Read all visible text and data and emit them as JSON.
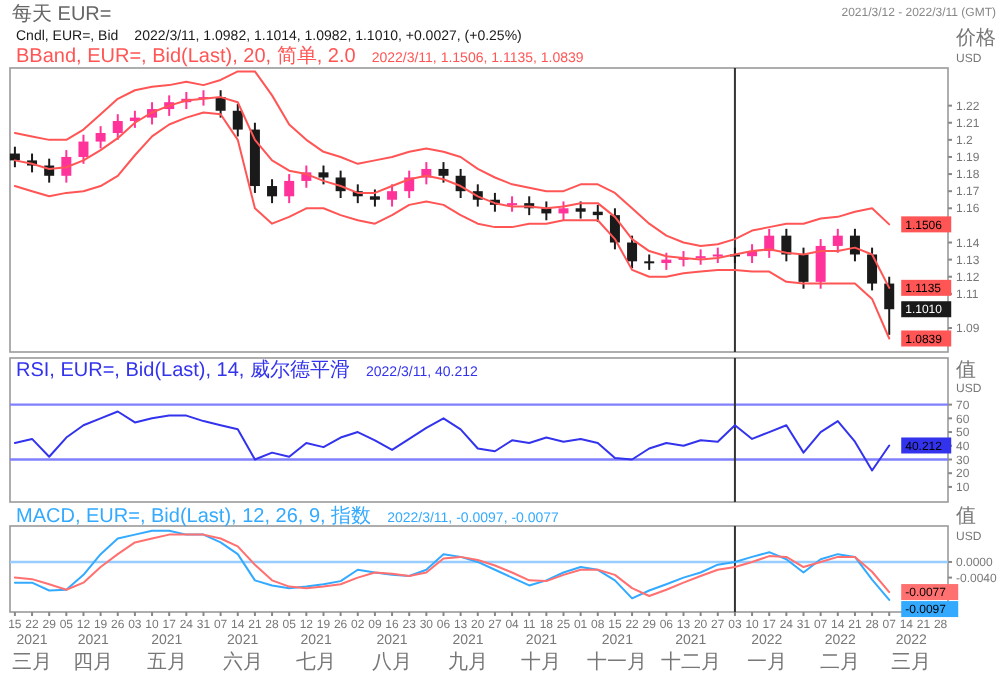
{
  "chart_data": [
    {
      "type": "candlestick",
      "title": "每天 EUR=",
      "subtitle": "2021/3/12 - 2022/3/11 (GMT)",
      "ylabel": "价格 USD",
      "legend": "top left",
      "tick_labels": "y",
      "x": [
        "2021-03-15",
        "2021-03-22",
        "2021-03-29",
        "2021-04-05",
        "2021-04-12",
        "2021-04-19",
        "2021-04-26",
        "2021-05-03",
        "2021-05-10",
        "2021-05-17",
        "2021-05-24",
        "2021-05-31",
        "2021-06-07",
        "2021-06-14",
        "2021-06-21",
        "2021-06-28",
        "2021-07-05",
        "2021-07-12",
        "2021-07-19",
        "2021-07-26",
        "2021-08-02",
        "2021-08-09",
        "2021-08-16",
        "2021-08-23",
        "2021-08-30",
        "2021-09-06",
        "2021-09-13",
        "2021-09-20",
        "2021-09-27",
        "2021-10-04",
        "2021-10-11",
        "2021-10-18",
        "2021-10-25",
        "2021-11-01",
        "2021-11-08",
        "2021-11-15",
        "2021-11-22",
        "2021-11-29",
        "2021-12-06",
        "2021-12-13",
        "2021-12-20",
        "2021-12-27",
        "2022-01-03",
        "2022-01-10",
        "2022-01-17",
        "2022-01-24",
        "2022-01-31",
        "2022-02-07",
        "2022-02-14",
        "2022-02-21",
        "2022-02-28",
        "2022-03-07"
      ],
      "xlim": [
        "2021-03-13",
        "2022-03-31"
      ],
      "ylim": [
        1.076,
        1.242
      ],
      "yticks": [
        1.09,
        1.11,
        1.12,
        1.13,
        1.14,
        1.16,
        1.17,
        1.18,
        1.19,
        1.2,
        1.21,
        1.22
      ],
      "annotations": [
        "2022/3/11, 1.0982, 1.1014, 1.0982, 1.1010, +0.0027, (+0.25%)",
        "2022/3/11, 1.1506, 1.1135, 1.0839"
      ],
      "ref_lines": [
        {
          "axis": "x",
          "value": "2022-01-03",
          "color": "#333333"
        }
      ],
      "series": [
        {
          "name": "Cndl, EUR=, Bid",
          "color": "#1a1a1a",
          "ohlc": [
            [
              1.192,
              1.196,
              1.184,
              1.188
            ],
            [
              1.188,
              1.192,
              1.181,
              1.185
            ],
            [
              1.185,
              1.189,
              1.175,
              1.179
            ],
            [
              1.179,
              1.194,
              1.175,
              1.19
            ],
            [
              1.19,
              1.203,
              1.186,
              1.199
            ],
            [
              1.199,
              1.208,
              1.195,
              1.204
            ],
            [
              1.204,
              1.215,
              1.2,
              1.211
            ],
            [
              1.211,
              1.217,
              1.207,
              1.213
            ],
            [
              1.213,
              1.222,
              1.209,
              1.218
            ],
            [
              1.218,
              1.226,
              1.214,
              1.222
            ],
            [
              1.222,
              1.228,
              1.218,
              1.224
            ],
            [
              1.224,
              1.229,
              1.22,
              1.225
            ],
            [
              1.225,
              1.229,
              1.213,
              1.217
            ],
            [
              1.217,
              1.221,
              1.202,
              1.206
            ],
            [
              1.206,
              1.21,
              1.169,
              1.173
            ],
            [
              1.173,
              1.177,
              1.163,
              1.167
            ],
            [
              1.167,
              1.18,
              1.163,
              1.176
            ],
            [
              1.176,
              1.185,
              1.172,
              1.181
            ],
            [
              1.181,
              1.185,
              1.174,
              1.178
            ],
            [
              1.178,
              1.182,
              1.166,
              1.17
            ],
            [
              1.17,
              1.174,
              1.163,
              1.167
            ],
            [
              1.167,
              1.171,
              1.161,
              1.165
            ],
            [
              1.165,
              1.174,
              1.161,
              1.17
            ],
            [
              1.17,
              1.182,
              1.166,
              1.178
            ],
            [
              1.178,
              1.187,
              1.174,
              1.183
            ],
            [
              1.183,
              1.187,
              1.175,
              1.179
            ],
            [
              1.179,
              1.183,
              1.166,
              1.17
            ],
            [
              1.17,
              1.174,
              1.161,
              1.165
            ],
            [
              1.165,
              1.169,
              1.158,
              1.162
            ],
            [
              1.162,
              1.167,
              1.158,
              1.163
            ],
            [
              1.163,
              1.167,
              1.156,
              1.16
            ],
            [
              1.16,
              1.164,
              1.153,
              1.157
            ],
            [
              1.157,
              1.164,
              1.153,
              1.16
            ],
            [
              1.16,
              1.164,
              1.154,
              1.158
            ],
            [
              1.158,
              1.162,
              1.152,
              1.156
            ],
            [
              1.156,
              1.16,
              1.136,
              1.14
            ],
            [
              1.14,
              1.144,
              1.125,
              1.129
            ],
            [
              1.129,
              1.133,
              1.124,
              1.128
            ],
            [
              1.128,
              1.134,
              1.124,
              1.13
            ],
            [
              1.13,
              1.135,
              1.126,
              1.131
            ],
            [
              1.131,
              1.136,
              1.127,
              1.132
            ],
            [
              1.132,
              1.137,
              1.128,
              1.133
            ],
            [
              1.133,
              1.137,
              1.128,
              1.132
            ],
            [
              1.132,
              1.139,
              1.128,
              1.135
            ],
            [
              1.135,
              1.148,
              1.131,
              1.144
            ],
            [
              1.144,
              1.148,
              1.129,
              1.133
            ],
            [
              1.133,
              1.137,
              1.113,
              1.117
            ],
            [
              1.117,
              1.142,
              1.113,
              1.138
            ],
            [
              1.138,
              1.148,
              1.134,
              1.144
            ],
            [
              1.144,
              1.148,
              1.129,
              1.133
            ],
            [
              1.133,
              1.137,
              1.112,
              1.116
            ],
            [
              1.116,
              1.12,
              1.086,
              1.101
            ]
          ],
          "colors": [
            "#1a1a1a",
            "#1a1a1a",
            "#1a1a1a",
            "#ff3399",
            "#ff3399",
            "#ff3399",
            "#ff3399",
            "#ff3399",
            "#ff3399",
            "#ff3399",
            "#ff3399",
            "#ff3399",
            "#1a1a1a",
            "#1a1a1a",
            "#1a1a1a",
            "#1a1a1a",
            "#ff3399",
            "#ff3399",
            "#1a1a1a",
            "#1a1a1a",
            "#1a1a1a",
            "#1a1a1a",
            "#ff3399",
            "#ff3399",
            "#ff3399",
            "#1a1a1a",
            "#1a1a1a",
            "#1a1a1a",
            "#1a1a1a",
            "#ff3399",
            "#1a1a1a",
            "#1a1a1a",
            "#ff3399",
            "#1a1a1a",
            "#1a1a1a",
            "#1a1a1a",
            "#1a1a1a",
            "#1a1a1a",
            "#ff3399",
            "#ff3399",
            "#ff3399",
            "#ff3399",
            "#1a1a1a",
            "#ff3399",
            "#ff3399",
            "#1a1a1a",
            "#1a1a1a",
            "#ff3399",
            "#ff3399",
            "#1a1a1a",
            "#1a1a1a",
            "#1a1a1a"
          ],
          "value_labels": [
            null,
            null,
            null,
            null,
            null,
            null,
            null,
            null,
            null,
            null,
            null,
            null,
            null,
            null,
            null,
            null,
            null,
            null,
            null,
            null,
            null,
            null,
            null,
            null,
            null,
            null,
            null,
            null,
            null,
            null,
            null,
            null,
            null,
            null,
            null,
            null,
            null,
            null,
            null,
            null,
            null,
            null,
            null,
            null,
            null,
            null,
            null,
            null,
            null,
            null,
            null,
            "1.1010"
          ]
        },
        {
          "type": "line",
          "name": "BBand, EUR=, Bid(Last), 20, 简单, 2.0",
          "color": "#ff5555",
          "values": [
            1.204,
            1.202,
            1.2,
            1.2,
            1.206,
            1.215,
            1.224,
            1.229,
            1.231,
            1.232,
            1.234,
            1.232,
            1.235,
            1.24,
            1.24,
            1.226,
            1.209,
            1.2,
            1.193,
            1.19,
            1.186,
            1.188,
            1.19,
            1.193,
            1.195,
            1.193,
            1.19,
            1.183,
            1.178,
            1.174,
            1.172,
            1.17,
            1.17,
            1.174,
            1.174,
            1.169,
            1.16,
            1.151,
            1.144,
            1.14,
            1.138,
            1.139,
            1.142,
            1.147,
            1.149,
            1.151,
            1.151,
            1.154,
            1.155,
            1.158,
            1.16,
            1.1506
          ],
          "value_labels": [
            null,
            null,
            null,
            null,
            null,
            null,
            null,
            null,
            null,
            null,
            null,
            null,
            null,
            null,
            null,
            null,
            null,
            null,
            null,
            null,
            null,
            null,
            null,
            null,
            null,
            null,
            null,
            null,
            null,
            null,
            null,
            null,
            null,
            null,
            null,
            null,
            null,
            null,
            null,
            null,
            null,
            null,
            null,
            null,
            null,
            null,
            null,
            null,
            null,
            null,
            null,
            "1.1506"
          ]
        },
        {
          "type": "line",
          "color": "#ff5555",
          "values": [
            1.188,
            1.186,
            1.183,
            1.184,
            1.188,
            1.194,
            1.201,
            1.21,
            1.216,
            1.22,
            1.223,
            1.224,
            1.225,
            1.222,
            1.2,
            1.188,
            1.182,
            1.18,
            1.176,
            1.173,
            1.169,
            1.169,
            1.173,
            1.177,
            1.179,
            1.177,
            1.173,
            1.167,
            1.163,
            1.161,
            1.161,
            1.16,
            1.161,
            1.163,
            1.163,
            1.155,
            1.142,
            1.135,
            1.132,
            1.131,
            1.13,
            1.131,
            1.133,
            1.135,
            1.136,
            1.134,
            1.133,
            1.135,
            1.135,
            1.137,
            1.133,
            1.1135
          ],
          "value_labels": [
            null,
            null,
            null,
            null,
            null,
            null,
            null,
            null,
            null,
            null,
            null,
            null,
            null,
            null,
            null,
            null,
            null,
            null,
            null,
            null,
            null,
            null,
            null,
            null,
            null,
            null,
            null,
            null,
            null,
            null,
            null,
            null,
            null,
            null,
            null,
            null,
            null,
            null,
            null,
            null,
            null,
            null,
            null,
            null,
            null,
            null,
            null,
            null,
            null,
            null,
            null,
            "1.1135"
          ]
        },
        {
          "type": "line",
          "color": "#ff5555",
          "values": [
            1.173,
            1.17,
            1.167,
            1.169,
            1.17,
            1.173,
            1.179,
            1.191,
            1.202,
            1.209,
            1.213,
            1.216,
            1.215,
            1.2,
            1.16,
            1.151,
            1.155,
            1.16,
            1.16,
            1.156,
            1.153,
            1.151,
            1.156,
            1.162,
            1.164,
            1.162,
            1.156,
            1.151,
            1.149,
            1.149,
            1.151,
            1.151,
            1.153,
            1.153,
            1.153,
            1.142,
            1.124,
            1.12,
            1.12,
            1.122,
            1.123,
            1.124,
            1.124,
            1.123,
            1.123,
            1.117,
            1.116,
            1.116,
            1.116,
            1.116,
            1.107,
            1.0839
          ],
          "value_labels": [
            null,
            null,
            null,
            null,
            null,
            null,
            null,
            null,
            null,
            null,
            null,
            null,
            null,
            null,
            null,
            null,
            null,
            null,
            null,
            null,
            null,
            null,
            null,
            null,
            null,
            null,
            null,
            null,
            null,
            null,
            null,
            null,
            null,
            null,
            null,
            null,
            null,
            null,
            null,
            null,
            null,
            null,
            null,
            null,
            null,
            null,
            null,
            null,
            null,
            null,
            null,
            "1.0839"
          ]
        }
      ]
    },
    {
      "type": "line",
      "ylabel": "值 USD",
      "legend": "top left",
      "tick_labels": "y",
      "x": [
        "2021-03-15",
        "2021-03-22",
        "2021-03-29",
        "2021-04-05",
        "2021-04-12",
        "2021-04-19",
        "2021-04-26",
        "2021-05-03",
        "2021-05-10",
        "2021-05-17",
        "2021-05-24",
        "2021-05-31",
        "2021-06-07",
        "2021-06-14",
        "2021-06-21",
        "2021-06-28",
        "2021-07-05",
        "2021-07-12",
        "2021-07-19",
        "2021-07-26",
        "2021-08-02",
        "2021-08-09",
        "2021-08-16",
        "2021-08-23",
        "2021-08-30",
        "2021-09-06",
        "2021-09-13",
        "2021-09-20",
        "2021-09-27",
        "2021-10-04",
        "2021-10-11",
        "2021-10-18",
        "2021-10-25",
        "2021-11-01",
        "2021-11-08",
        "2021-11-15",
        "2021-11-22",
        "2021-11-29",
        "2021-12-06",
        "2021-12-13",
        "2021-12-20",
        "2021-12-27",
        "2022-01-03",
        "2022-01-10",
        "2022-01-17",
        "2022-01-24",
        "2022-01-31",
        "2022-02-07",
        "2022-02-14",
        "2022-02-21",
        "2022-02-28",
        "2022-03-07"
      ],
      "xlim": [
        "2021-03-13",
        "2022-03-31"
      ],
      "ylim": [
        -1,
        104
      ],
      "yticks": [
        10,
        20,
        30,
        40,
        50,
        60,
        70
      ],
      "annotations": [
        "2022/3/11, 40.212"
      ],
      "ref_lines": [
        {
          "axis": "y",
          "value": 70,
          "color": "#8080ff"
        },
        {
          "axis": "y",
          "value": 30,
          "color": "#8080ff"
        },
        {
          "axis": "x",
          "value": "2022-01-03",
          "color": "#333333"
        }
      ],
      "series": [
        {
          "name": "RSI, EUR=, Bid(Last), 14, 威尔德平滑",
          "color": "#3333ee",
          "values": [
            42,
            45,
            32,
            46,
            55,
            60,
            65,
            57,
            60,
            62,
            62,
            58,
            55,
            52,
            30,
            35,
            32,
            42,
            39,
            46,
            50,
            44,
            37,
            45,
            53,
            60,
            52,
            38,
            36,
            44,
            42,
            46,
            43,
            45,
            42,
            31,
            30,
            38,
            42,
            40,
            44,
            43,
            55,
            45,
            50,
            55,
            35,
            50,
            58,
            43,
            22,
            40.212
          ],
          "value_labels": [
            null,
            null,
            null,
            null,
            null,
            null,
            null,
            null,
            null,
            null,
            null,
            null,
            null,
            null,
            null,
            null,
            null,
            null,
            null,
            null,
            null,
            null,
            null,
            null,
            null,
            null,
            null,
            null,
            null,
            null,
            null,
            null,
            null,
            null,
            null,
            null,
            null,
            null,
            null,
            null,
            null,
            null,
            null,
            null,
            null,
            null,
            null,
            null,
            null,
            null,
            null,
            "40.212"
          ]
        }
      ]
    },
    {
      "type": "line",
      "ylabel": "值 USD",
      "legend": "top left",
      "x": [
        "2021-03-15",
        "2021-03-22",
        "2021-03-29",
        "2021-04-05",
        "2021-04-12",
        "2021-04-19",
        "2021-04-26",
        "2021-05-03",
        "2021-05-10",
        "2021-05-17",
        "2021-05-24",
        "2021-05-31",
        "2021-06-07",
        "2021-06-14",
        "2021-06-21",
        "2021-06-28",
        "2021-07-05",
        "2021-07-12",
        "2021-07-19",
        "2021-07-26",
        "2021-08-02",
        "2021-08-09",
        "2021-08-16",
        "2021-08-23",
        "2021-08-30",
        "2021-09-06",
        "2021-09-13",
        "2021-09-20",
        "2021-09-27",
        "2021-10-04",
        "2021-10-11",
        "2021-10-18",
        "2021-10-25",
        "2021-11-01",
        "2021-11-08",
        "2021-11-15",
        "2021-11-22",
        "2021-11-29",
        "2021-12-06",
        "2021-12-13",
        "2021-12-20",
        "2021-12-27",
        "2022-01-03",
        "2022-01-10",
        "2022-01-17",
        "2022-01-24",
        "2022-01-31",
        "2022-02-07",
        "2022-02-14",
        "2022-02-21",
        "2022-02-28",
        "2022-03-07"
      ],
      "xlim": [
        "2021-03-13",
        "2022-03-31"
      ],
      "ylim": [
        -0.0128,
        0.0092
      ],
      "yticks": [
        {
          "value": 0,
          "label": "0.0000"
        },
        {
          "value": -0.004,
          "label": "-0.0040"
        }
      ],
      "xticks": [
        {
          "value": "2021-03-15",
          "label": "15"
        },
        {
          "value": "2021-03-22",
          "label": "22"
        },
        {
          "value": "2021-03-29",
          "label": "29"
        },
        {
          "value": "2021-04-05",
          "label": "05"
        },
        {
          "value": "2021-04-12",
          "label": "12"
        },
        {
          "value": "2021-04-19",
          "label": "19"
        },
        {
          "value": "2021-04-26",
          "label": "26"
        },
        {
          "value": "2021-05-03",
          "label": "03"
        },
        {
          "value": "2021-05-10",
          "label": "10"
        },
        {
          "value": "2021-05-17",
          "label": "17"
        },
        {
          "value": "2021-05-24",
          "label": "24"
        },
        {
          "value": "2021-05-31",
          "label": "31"
        },
        {
          "value": "2021-06-07",
          "label": "07"
        },
        {
          "value": "2021-06-14",
          "label": "14"
        },
        {
          "value": "2021-06-21",
          "label": "21"
        },
        {
          "value": "2021-06-28",
          "label": "28"
        },
        {
          "value": "2021-07-05",
          "label": "05"
        },
        {
          "value": "2021-07-12",
          "label": "12"
        },
        {
          "value": "2021-07-19",
          "label": "19"
        },
        {
          "value": "2021-07-26",
          "label": "26"
        },
        {
          "value": "2021-08-02",
          "label": "02"
        },
        {
          "value": "2021-08-09",
          "label": "09"
        },
        {
          "value": "2021-08-16",
          "label": "16"
        },
        {
          "value": "2021-08-23",
          "label": "23"
        },
        {
          "value": "2021-08-30",
          "label": "30"
        },
        {
          "value": "2021-09-06",
          "label": "06"
        },
        {
          "value": "2021-09-13",
          "label": "13"
        },
        {
          "value": "2021-09-20",
          "label": "20"
        },
        {
          "value": "2021-09-27",
          "label": "27"
        },
        {
          "value": "2021-10-04",
          "label": "04"
        },
        {
          "value": "2021-10-11",
          "label": "11"
        },
        {
          "value": "2021-10-18",
          "label": "18"
        },
        {
          "value": "2021-10-25",
          "label": "25"
        },
        {
          "value": "2021-11-01",
          "label": "01"
        },
        {
          "value": "2021-11-08",
          "label": "08"
        },
        {
          "value": "2021-11-15",
          "label": "15"
        },
        {
          "value": "2021-11-22",
          "label": "22"
        },
        {
          "value": "2021-11-29",
          "label": "29"
        },
        {
          "value": "2021-12-06",
          "label": "06"
        },
        {
          "value": "2021-12-13",
          "label": "13"
        },
        {
          "value": "2021-12-20",
          "label": "20"
        },
        {
          "value": "2021-12-27",
          "label": "27"
        },
        {
          "value": "2022-01-03",
          "label": "03"
        },
        {
          "value": "2022-01-10",
          "label": "10"
        },
        {
          "value": "2022-01-17",
          "label": "17"
        },
        {
          "value": "2022-01-24",
          "label": "24"
        },
        {
          "value": "2022-01-31",
          "label": "31"
        },
        {
          "value": "2022-02-07",
          "label": "07"
        },
        {
          "value": "2022-02-14",
          "label": "14"
        },
        {
          "value": "2022-02-21",
          "label": "21"
        },
        {
          "value": "2022-02-28",
          "label": "28"
        },
        {
          "value": "2022-03-07",
          "label": "07"
        },
        {
          "value": "2022-03-14",
          "label": "14"
        },
        {
          "value": "2022-03-21",
          "label": "21"
        },
        {
          "value": "2022-03-28",
          "label": "28"
        }
      ],
      "annotations": [
        "2022/3/11, -0.0097, -0.0077"
      ],
      "x2lim": [
        "2021-03-13",
        "2022-03-31"
      ],
      "x2ticks": [
        {
          "value": "2021-03-22",
          "label": "2021 三月"
        },
        {
          "value": "2021-04-16",
          "label": "2021 四月"
        },
        {
          "value": "2021-05-16",
          "label": "2021 五月"
        },
        {
          "value": "2021-06-16",
          "label": "2021 六月"
        },
        {
          "value": "2021-07-16",
          "label": "2021 七月"
        },
        {
          "value": "2021-08-16",
          "label": "2021 八月"
        },
        {
          "value": "2021-09-16",
          "label": "2021 九月"
        },
        {
          "value": "2021-10-16",
          "label": "2021 十月"
        },
        {
          "value": "2021-11-16",
          "label": "2021 十一月"
        },
        {
          "value": "2021-12-16",
          "label": "2021 十二月"
        },
        {
          "value": "2022-01-16",
          "label": "2022 一月"
        },
        {
          "value": "2022-02-15",
          "label": "2022 二月"
        },
        {
          "value": "2022-03-16",
          "label": "2022 三月"
        }
      ],
      "ref_lines": [
        {
          "axis": "y",
          "value": 0,
          "color": "#99ccff"
        },
        {
          "axis": "x",
          "value": "2022-01-03",
          "color": "#333333"
        }
      ],
      "series": [
        {
          "name": "MACD, EUR=, Bid(Last), 12, 26, 9, 指数",
          "color": "#33aaff",
          "values": [
            -0.0053,
            -0.0053,
            -0.0073,
            -0.0071,
            -0.0033,
            0.002,
            0.006,
            0.007,
            0.008,
            0.008,
            0.007,
            0.007,
            0.005,
            0.002,
            -0.0047,
            -0.006,
            -0.0067,
            -0.0063,
            -0.0057,
            -0.0049,
            -0.002,
            -0.0027,
            -0.0033,
            -0.0036,
            -0.002,
            0.002,
            0.0013,
            0,
            -0.002,
            -0.004,
            -0.006,
            -0.0047,
            -0.0027,
            -0.0013,
            -0.002,
            -0.0047,
            -0.0093,
            -0.0073,
            -0.0057,
            -0.004,
            -0.0027,
            -0.0007,
            0,
            0.0013,
            0.0025,
            0.0007,
            -0.0027,
            0.0007,
            0.002,
            0.0013,
            -0.0045,
            -0.0097
          ],
          "value_labels": [
            null,
            null,
            null,
            null,
            null,
            null,
            null,
            null,
            null,
            null,
            null,
            null,
            null,
            null,
            null,
            null,
            null,
            null,
            null,
            null,
            null,
            null,
            null,
            null,
            null,
            null,
            null,
            null,
            null,
            null,
            null,
            null,
            null,
            null,
            null,
            null,
            null,
            null,
            null,
            null,
            null,
            null,
            null,
            null,
            null,
            null,
            null,
            null,
            null,
            null,
            null,
            "-0.0097"
          ]
        },
        {
          "color": "#ff7070",
          "values": [
            -0.004,
            -0.0044,
            -0.0057,
            -0.0071,
            -0.0053,
            -0.0013,
            0.002,
            0.005,
            0.006,
            0.007,
            0.007,
            0.007,
            0.006,
            0.004,
            -0.0007,
            -0.0047,
            -0.0063,
            -0.0067,
            -0.0063,
            -0.0057,
            -0.004,
            -0.0027,
            -0.003,
            -0.0036,
            -0.0027,
            0.0009,
            0.0013,
            0.0005,
            -0.0009,
            -0.0027,
            -0.0047,
            -0.0049,
            -0.0033,
            -0.002,
            -0.002,
            -0.0033,
            -0.0067,
            -0.0087,
            -0.0071,
            -0.0053,
            -0.0036,
            -0.002,
            -0.0013,
            0,
            0.0015,
            0.0013,
            -0.0013,
            0,
            0.0013,
            0.0013,
            -0.0025,
            -0.0077
          ],
          "value_labels": [
            null,
            null,
            null,
            null,
            null,
            null,
            null,
            null,
            null,
            null,
            null,
            null,
            null,
            null,
            null,
            null,
            null,
            null,
            null,
            null,
            null,
            null,
            null,
            null,
            null,
            null,
            null,
            null,
            null,
            null,
            null,
            null,
            null,
            null,
            null,
            null,
            null,
            null,
            null,
            null,
            null,
            null,
            null,
            null,
            null,
            null,
            null,
            null,
            null,
            null,
            null,
            "-0.0077"
          ]
        }
      ]
    }
  ]
}
